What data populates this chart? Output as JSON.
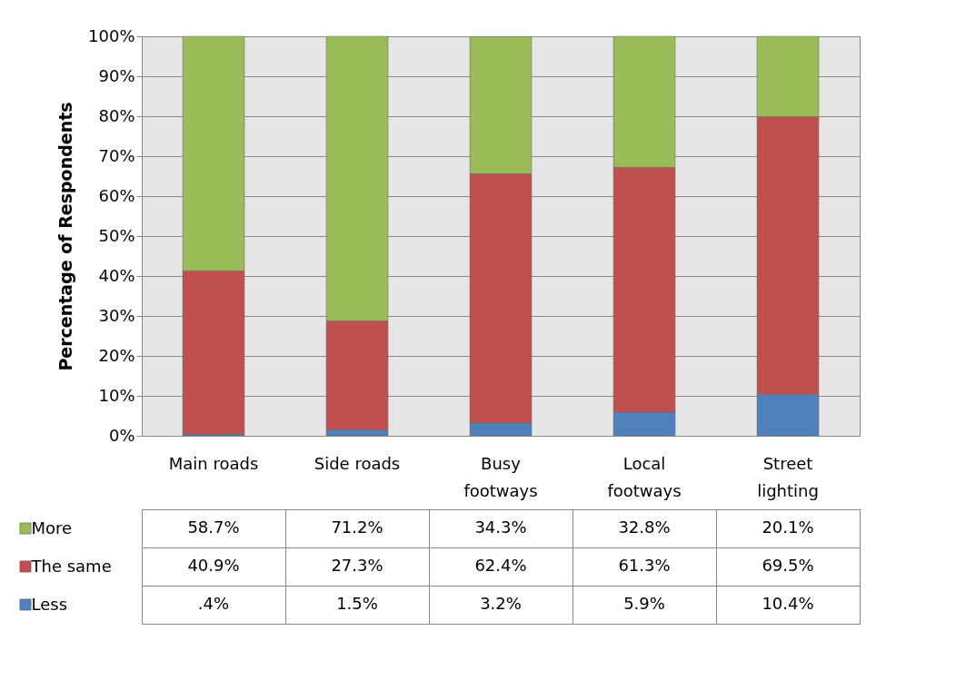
{
  "chart_data": {
    "type": "bar",
    "stacked": true,
    "ylabel": "Percentage of Respondents",
    "categories": [
      "Main roads",
      "Side roads",
      "Busy footways",
      "Local footways",
      "Street lighting"
    ],
    "series": [
      {
        "name": "Less",
        "color": "#4f81bd",
        "values": [
          0.4,
          1.5,
          3.2,
          5.9,
          10.4
        ],
        "value_labels": [
          ".4%",
          "1.5%",
          "3.2%",
          "5.9%",
          "10.4%"
        ]
      },
      {
        "name": "The same",
        "color": "#c0504d",
        "values": [
          40.9,
          27.3,
          62.4,
          61.3,
          69.5
        ],
        "value_labels": [
          "40.9%",
          "27.3%",
          "62.4%",
          "61.3%",
          "69.5%"
        ]
      },
      {
        "name": "More",
        "color": "#9bbb59",
        "values": [
          58.7,
          71.2,
          34.3,
          32.8,
          20.1
        ],
        "value_labels": [
          "58.7%",
          "71.2%",
          "34.3%",
          "32.8%",
          "20.1%"
        ]
      }
    ],
    "ylim": [
      0,
      100
    ],
    "yticks": [
      {
        "value": 0,
        "label": "0%"
      },
      {
        "value": 10,
        "label": "10%"
      },
      {
        "value": 20,
        "label": "20%"
      },
      {
        "value": 30,
        "label": "30%"
      },
      {
        "value": 40,
        "label": "40%"
      },
      {
        "value": 50,
        "label": "50%"
      },
      {
        "value": 60,
        "label": "60%"
      },
      {
        "value": 70,
        "label": "70%"
      },
      {
        "value": 80,
        "label": "80%"
      },
      {
        "value": 90,
        "label": "90%"
      },
      {
        "value": 100,
        "label": "100%"
      }
    ],
    "grid": "y",
    "legend": "bottom"
  }
}
